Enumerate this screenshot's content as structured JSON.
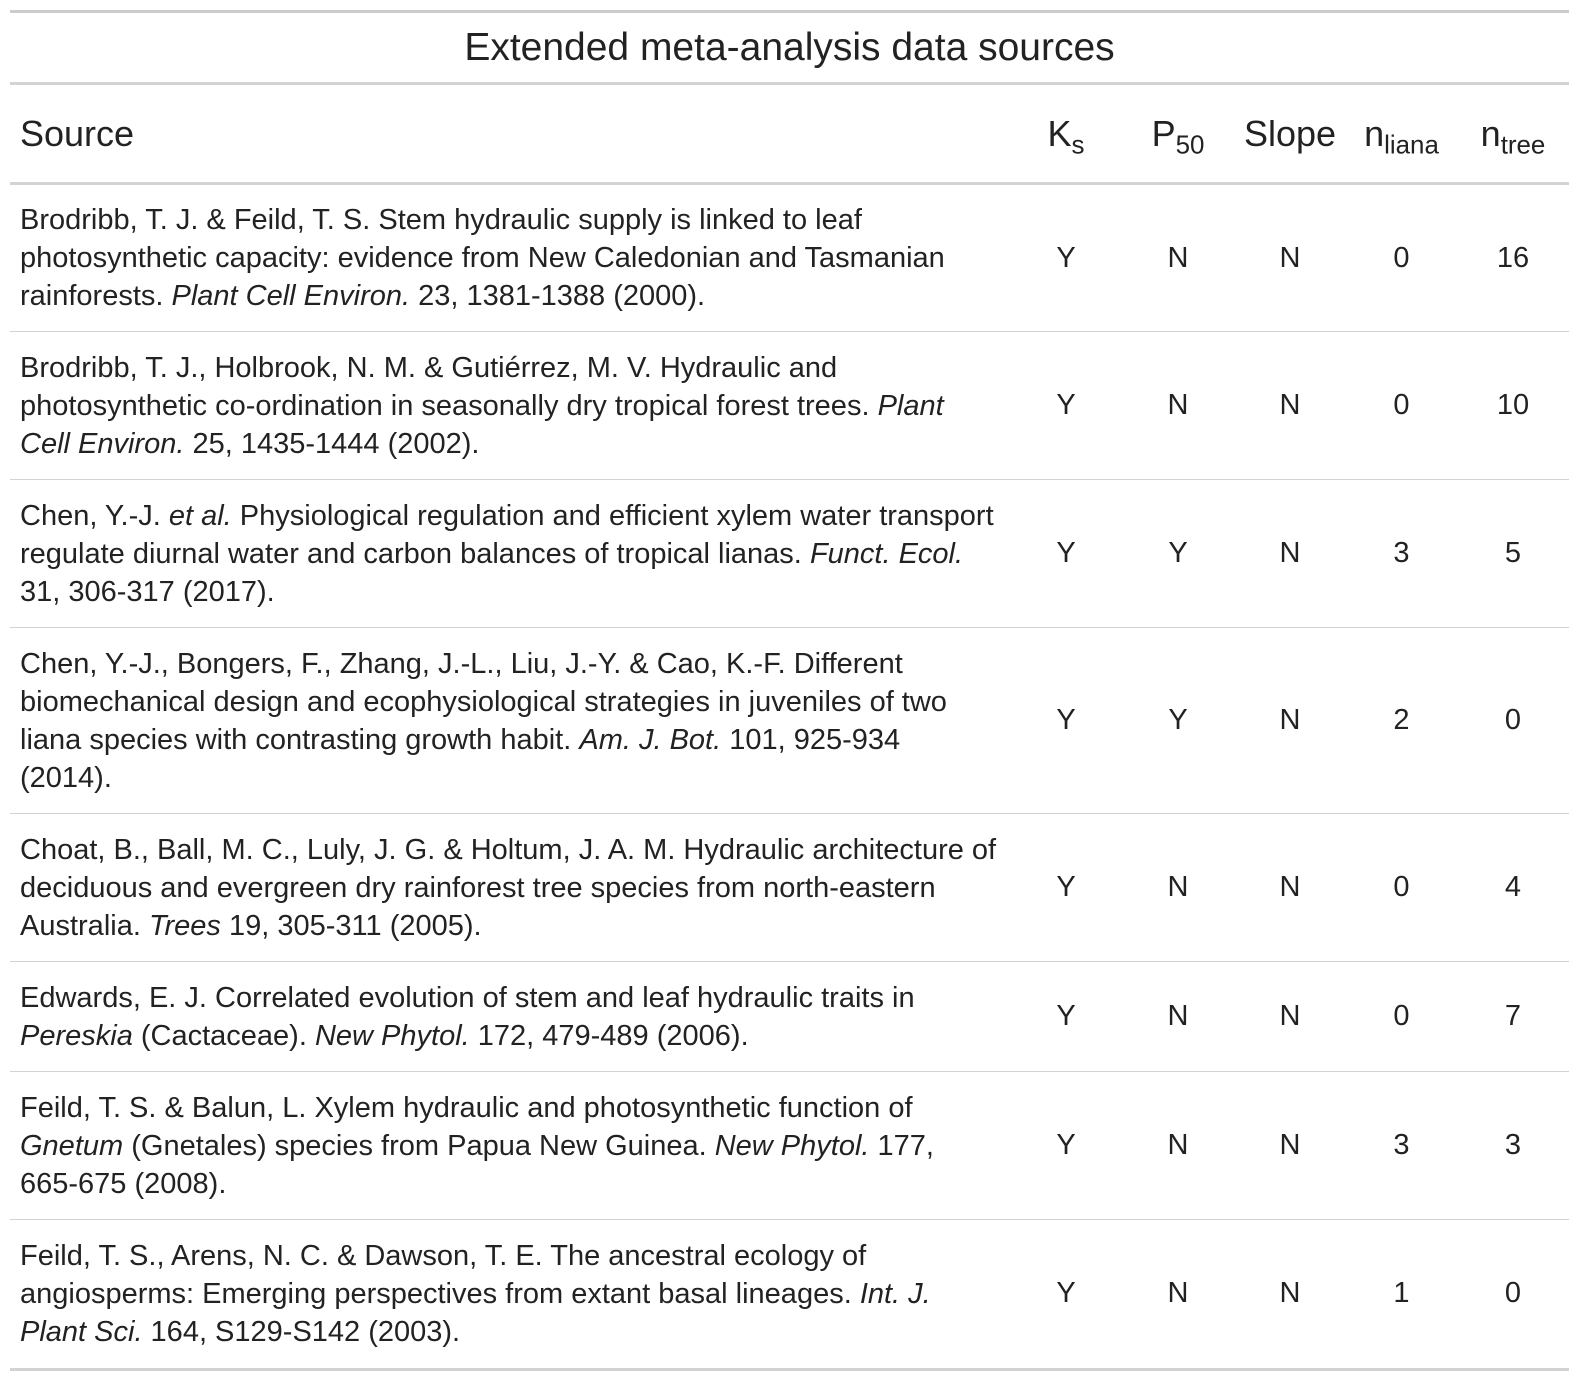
{
  "title": "Extended meta-analysis data sources",
  "columns": {
    "source": "Source",
    "ks_main": "K",
    "ks_sub": "s",
    "p50_main": "P",
    "p50_sub": "50",
    "slope": "Slope",
    "nliana_main": "n",
    "nliana_sub": "liana",
    "ntree_main": "n",
    "ntree_sub": "tree"
  },
  "rows": [
    {
      "pre": "Brodribb, T. J. & Feild, T. S. Stem hydraulic supply is linked to leaf photosynthetic capacity: evidence from New Caledonian and Tasmanian rainforests. ",
      "journal": "Plant Cell Environ.",
      "post": " 23, 1381-1388 (2000).",
      "ks": "Y",
      "p50": "N",
      "slope": "N",
      "nliana": "0",
      "ntree": "16"
    },
    {
      "pre": "Brodribb, T. J., Holbrook, N. M. & Gutiérrez, M. V. Hydraulic and photosynthetic co-ordination in seasonally dry tropical forest trees. ",
      "journal": "Plant Cell Environ.",
      "post": " 25, 1435-1444 (2002).",
      "ks": "Y",
      "p50": "N",
      "slope": "N",
      "nliana": "0",
      "ntree": "10"
    },
    {
      "pre": "Chen, Y.-J. ",
      "etal": "et al.",
      "mid": " Physiological regulation and efficient xylem water transport regulate diurnal water and carbon balances of tropical lianas. ",
      "journal": "Funct. Ecol.",
      "post": " 31, 306-317 (2017).",
      "ks": "Y",
      "p50": "Y",
      "slope": "N",
      "nliana": "3",
      "ntree": "5"
    },
    {
      "pre": "Chen, Y.-J., Bongers, F., Zhang, J.-L., Liu, J.-Y. & Cao, K.-F. Different biomechanical design and ecophysiological strategies in juveniles of two liana species with contrasting growth habit. ",
      "journal": "Am. J. Bot.",
      "post": " 101, 925-934 (2014).",
      "ks": "Y",
      "p50": "Y",
      "slope": "N",
      "nliana": "2",
      "ntree": "0"
    },
    {
      "pre": "Choat, B., Ball, M. C., Luly, J. G. & Holtum, J. A. M. Hydraulic architecture of deciduous and evergreen dry rainforest tree species from north-eastern Australia. ",
      "journal": "Trees",
      "post": " 19, 305-311 (2005).",
      "ks": "Y",
      "p50": "N",
      "slope": "N",
      "nliana": "0",
      "ntree": "4"
    },
    {
      "pre": "Edwards, E. J. Correlated evolution of stem and leaf hydraulic traits in ",
      "etal": "Pereskia",
      "mid": " (Cactaceae). ",
      "journal": "New Phytol.",
      "post": " 172, 479-489 (2006).",
      "ks": "Y",
      "p50": "N",
      "slope": "N",
      "nliana": "0",
      "ntree": "7"
    },
    {
      "pre": "Feild, T. S. & Balun, L. Xylem hydraulic and photosynthetic function of ",
      "etal": "Gnetum",
      "mid": " (Gnetales) species from Papua New Guinea. ",
      "journal": "New Phytol.",
      "post": " 177, 665-675 (2008).",
      "ks": "Y",
      "p50": "N",
      "slope": "N",
      "nliana": "3",
      "ntree": "3"
    },
    {
      "pre": "Feild, T. S., Arens, N. C. & Dawson, T. E. The ancestral ecology of angiosperms: Emerging perspectives from extant basal lineages. ",
      "journal": "Int. J. Plant Sci.",
      "post": " 164, S129-S142 (2003).",
      "ks": "Y",
      "p50": "N",
      "slope": "N",
      "nliana": "1",
      "ntree": "0"
    }
  ]
}
